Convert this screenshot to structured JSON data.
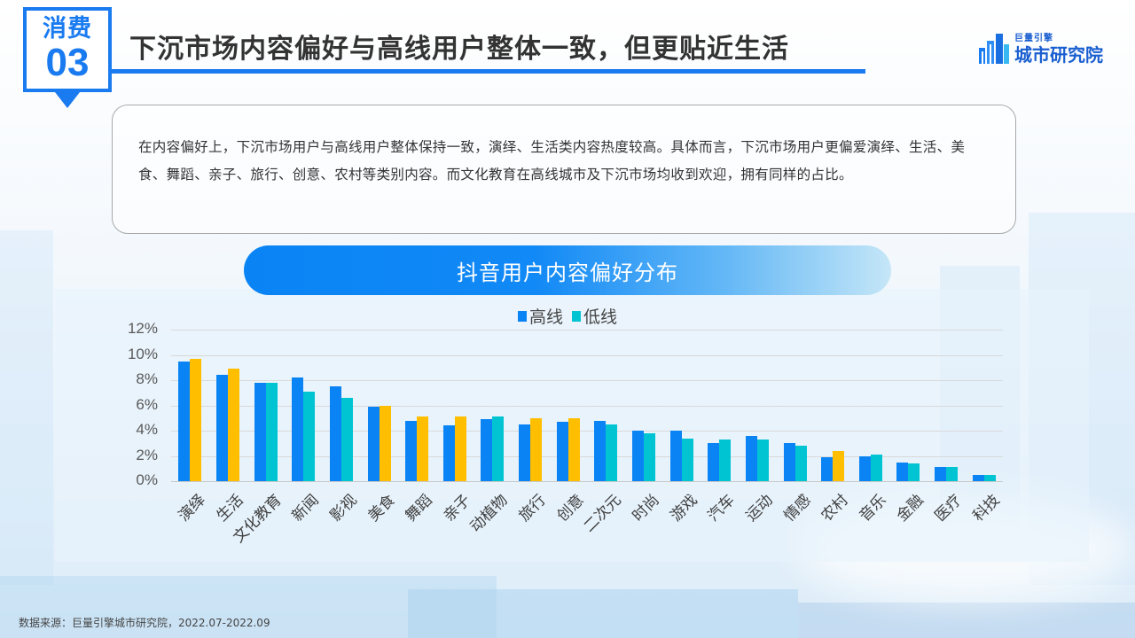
{
  "header": {
    "section_label": "消费",
    "section_number": "03",
    "title": "下沉市场内容偏好与高线用户整体一致，但更贴近生活",
    "accent_color": "#1a7bf0"
  },
  "logo": {
    "sub": "巨量引擎",
    "main": "城市研究院"
  },
  "summary": {
    "text": "在内容偏好上，下沉市场用户与高线用户整体保持一致，演绎、生活类内容热度较高。具体而言，下沉市场用户更偏爱演绎、生活、美食、舞蹈、亲子、旅行、创意、农村等类别内容。而文化教育在高线城市及下沉市场均收到欢迎，拥有同样的占比。"
  },
  "chart_banner": {
    "title": "抖音用户内容偏好分布"
  },
  "legend": {
    "items": [
      {
        "label": "高线",
        "color": "#0a84f5"
      },
      {
        "label": "低线",
        "color": "#00c4d2"
      }
    ],
    "highlight_color": "#ffbf00"
  },
  "chart_data": {
    "type": "bar",
    "title": "抖音用户内容偏好分布",
    "xlabel": "",
    "ylabel": "",
    "ylim": [
      0,
      12
    ],
    "yticks": [
      "0%",
      "2%",
      "4%",
      "6%",
      "8%",
      "10%",
      "12%"
    ],
    "grid": true,
    "legend_position": "top",
    "categories": [
      "演绎",
      "生活",
      "文化教育",
      "新闻",
      "影视",
      "美食",
      "舞蹈",
      "亲子",
      "动植物",
      "旅行",
      "创意",
      "二次元",
      "时尚",
      "游戏",
      "汽车",
      "运动",
      "情感",
      "农村",
      "音乐",
      "金融",
      "医疗",
      "科技"
    ],
    "series": [
      {
        "name": "高线",
        "color": "#0a84f5",
        "values": [
          9.5,
          8.4,
          7.8,
          8.2,
          7.5,
          5.9,
          4.8,
          4.4,
          4.9,
          4.5,
          4.7,
          4.8,
          4.0,
          4.0,
          3.0,
          3.6,
          3.0,
          1.9,
          2.0,
          1.5,
          1.1,
          0.5
        ]
      },
      {
        "name": "低线",
        "color": "#00c4d2",
        "values": [
          9.7,
          8.9,
          7.8,
          7.1,
          6.6,
          6.0,
          5.1,
          5.1,
          5.1,
          5.0,
          5.0,
          4.5,
          3.8,
          3.4,
          3.3,
          3.3,
          2.8,
          2.4,
          2.1,
          1.4,
          1.1,
          0.5
        ]
      }
    ],
    "highlighted_low_tier_categories": [
      "演绎",
      "生活",
      "美食",
      "舞蹈",
      "亲子",
      "旅行",
      "创意",
      "农村"
    ],
    "highlight_color": "#ffbf00"
  },
  "footer": {
    "source": "数据来源：巨量引擎城市研究院，2022.07-2022.09"
  }
}
